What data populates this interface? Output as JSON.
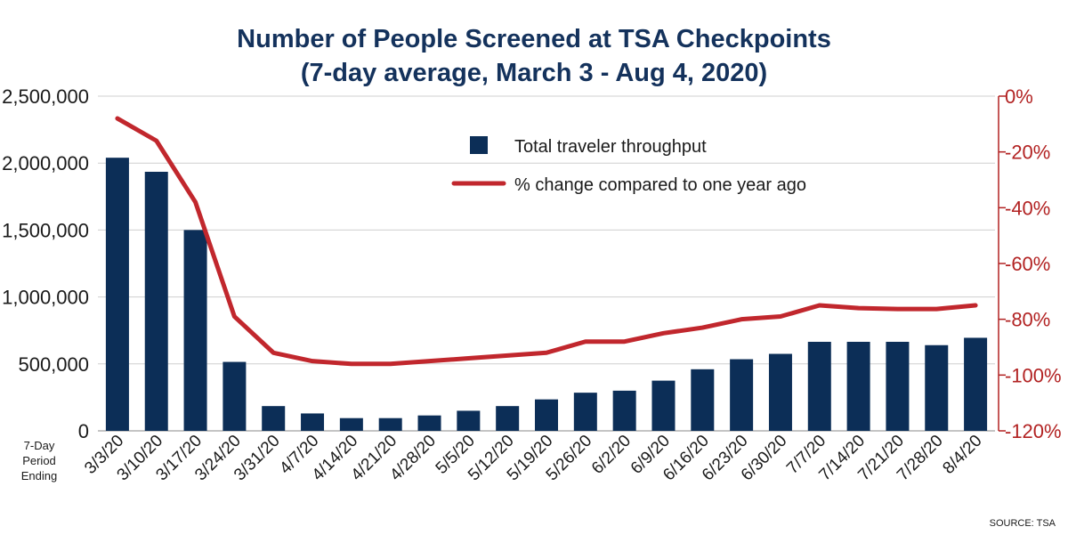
{
  "title_line1": "Number of People Screened at TSA Checkpoints",
  "title_line2": "(7-day average, March 3 - Aug 4, 2020)",
  "period_label": [
    "7-Day",
    "Period",
    "Ending"
  ],
  "source": "SOURCE: TSA",
  "colors": {
    "bar": "#0c2e57",
    "line": "#c1272d",
    "title": "#14325c",
    "right_axis": "#b22222"
  },
  "chart_data": {
    "type": "bar",
    "title": "Number of People Screened at TSA Checkpoints",
    "subtitle": "(7-day average, March 3 - Aug 4, 2020)",
    "xlabel": "7-Day Period Ending",
    "categories": [
      "3/3/20",
      "3/10/20",
      "3/17/20",
      "3/24/20",
      "3/31/20",
      "4/7/20",
      "4/14/20",
      "4/21/20",
      "4/28/20",
      "5/5/20",
      "5/12/20",
      "5/19/20",
      "5/26/20",
      "6/2/20",
      "6/9/20",
      "6/16/20",
      "6/23/20",
      "6/30/20",
      "7/7/20",
      "7/14/20",
      "7/21/20",
      "7/28/20",
      "8/4/20"
    ],
    "series": [
      {
        "name": "Total traveler throughput",
        "type": "bar",
        "axis": "left",
        "values": [
          2040000,
          1935000,
          1500000,
          515000,
          185000,
          130000,
          95000,
          95000,
          115000,
          150000,
          185000,
          235000,
          285000,
          300000,
          375000,
          460000,
          535000,
          575000,
          665000,
          665000,
          665000,
          640000,
          695000
        ]
      },
      {
        "name": "% change compared to one year ago",
        "type": "line",
        "axis": "right",
        "values": [
          -8,
          -16,
          -38,
          -79,
          -92,
          -95,
          -96,
          -96,
          -95,
          -94,
          -93,
          -92,
          -88,
          -88,
          -85,
          -83,
          -80,
          -79,
          -75,
          -76,
          -76.3,
          -76.3,
          -75
        ]
      }
    ],
    "y_left": {
      "lim": [
        0,
        2500000
      ],
      "ticks": [
        0,
        500000,
        1000000,
        1500000,
        2000000,
        2500000
      ],
      "tick_labels": [
        "0",
        "500,000",
        "1,000,000",
        "1,500,000",
        "2,000,000",
        "2,500,000"
      ]
    },
    "y_right": {
      "lim": [
        -120,
        0
      ],
      "ticks": [
        0,
        -20,
        -40,
        -60,
        -80,
        -100,
        -120
      ],
      "tick_labels": [
        "0%",
        "-20%",
        "-40%",
        "-60%",
        "-80%",
        "-100%",
        "-120%"
      ]
    },
    "grid": true,
    "legend": "top-center"
  }
}
